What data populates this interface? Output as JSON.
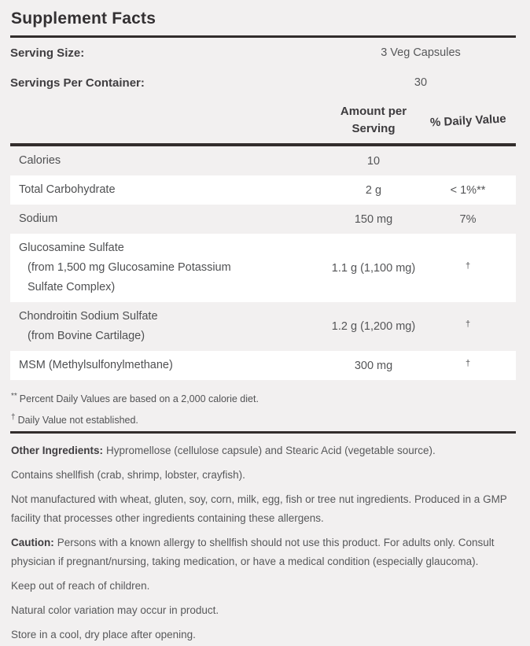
{
  "label": {
    "title": "Supplement Facts",
    "serving": [
      {
        "label": "Serving Size:",
        "value": "3 Veg Capsules"
      },
      {
        "label": "Servings Per Container:",
        "value": "30"
      }
    ],
    "columns": {
      "amount": "Amount per Serving",
      "daily_value": "% Daily Value"
    },
    "rows": [
      {
        "name_lines": [
          "Calories"
        ],
        "amount": "10",
        "dv": ""
      },
      {
        "name_lines": [
          "Total Carbohydrate"
        ],
        "amount": "2 g",
        "dv": "< 1%**"
      },
      {
        "name_lines": [
          "Sodium"
        ],
        "amount": "150 mg",
        "dv": "7%"
      },
      {
        "name_lines": [
          "Glucosamine Sulfate",
          "(from 1,500 mg Glucosamine Potassium",
          "Sulfate Complex)"
        ],
        "amount": "1.1 g (1,100 mg)",
        "dv": "†"
      },
      {
        "name_lines": [
          "Chondroitin Sodium Sulfate",
          "(from Bovine Cartilage)"
        ],
        "amount": "1.2 g (1,200 mg)",
        "dv": "†"
      },
      {
        "name_lines": [
          "MSM (Methylsulfonylmethane)"
        ],
        "amount": "300 mg",
        "dv": "†"
      }
    ],
    "footnotes": [
      {
        "symbol": "**",
        "text": "Percent Daily Values are based on a 2,000 calorie diet."
      },
      {
        "symbol": "†",
        "text": "Daily Value not established."
      }
    ],
    "other_info": [
      {
        "label": "Other Ingredients:",
        "text": "Hypromellose (cellulose capsule) and Stearic Acid (vegetable source)."
      },
      {
        "label": "",
        "text": "Contains shellfish (crab, shrimp, lobster, crayfish)."
      },
      {
        "label": "",
        "text": "Not manufactured with wheat, gluten, soy, corn, milk, egg, fish or tree nut ingredients. Produced in a GMP facility that processes other ingredients containing these allergens."
      },
      {
        "label": "Caution:",
        "text": "Persons with a known allergy to shellfish should not use this product. For adults only. Consult physician if pregnant/nursing, taking medication, or have a medical condition (especially glaucoma)."
      },
      {
        "label": "",
        "text": "Keep out of reach of children."
      },
      {
        "label": "",
        "text": "Natural color variation may occur in product."
      },
      {
        "label": "",
        "text": "Store in a cool, dry place after opening."
      }
    ],
    "colors": {
      "background": "#f2f0f0",
      "row_highlight": "#ffffff",
      "rule": "#322d2c",
      "heading_text": "#333032",
      "body_text": "#57585a"
    }
  }
}
